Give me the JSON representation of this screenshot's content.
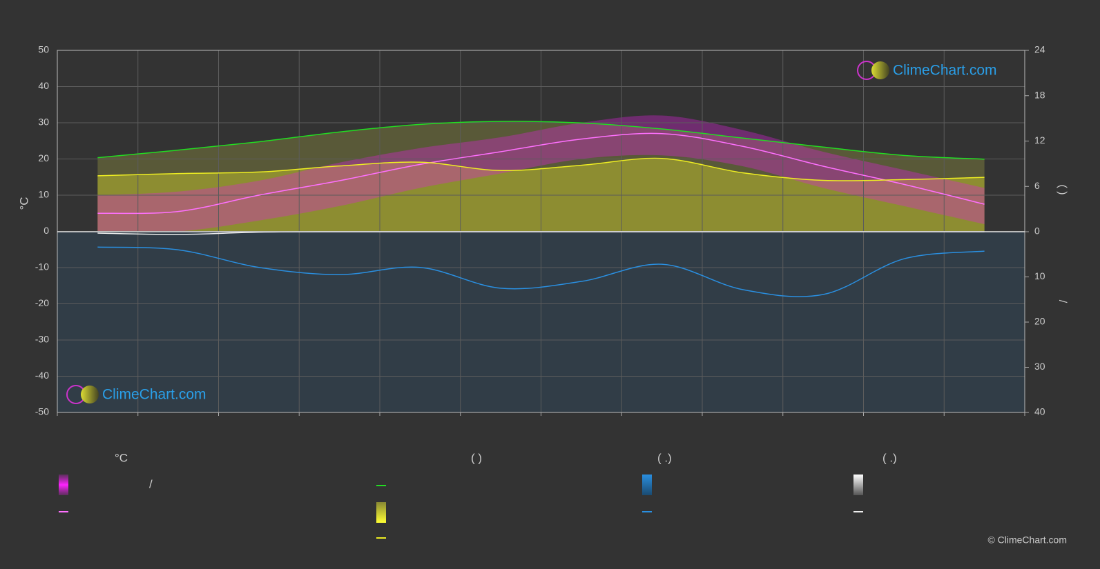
{
  "chart_data": {
    "type": "line",
    "ylabel": "°C",
    "y2label": "(   )",
    "y3label": "/",
    "categories": [
      null,
      null,
      null,
      null,
      null,
      null,
      null,
      null,
      null,
      null,
      null,
      null
    ],
    "ylim": [
      -50,
      50
    ],
    "yticks": [
      -50,
      -40,
      -30,
      -20,
      -10,
      0,
      10,
      20,
      30,
      40,
      50
    ],
    "y2lim": [
      0,
      24
    ],
    "y2ticks": [
      0,
      6,
      12,
      18,
      24
    ],
    "y3lim": [
      0,
      40
    ],
    "y3ticks": [
      0,
      10,
      20,
      30,
      40
    ],
    "grid": true,
    "temp_band": {
      "color": "#e020e0",
      "low": [
        0,
        0,
        3,
        7,
        12,
        16,
        20,
        21,
        18,
        12,
        7,
        2
      ],
      "high": [
        10,
        11,
        14,
        19,
        23,
        26,
        30,
        32,
        28,
        22,
        17,
        12
      ]
    },
    "series": [
      {
        "color": "#ff70ff",
        "axis": "y",
        "values": [
          5,
          5.5,
          10,
          14,
          18.5,
          22,
          25.5,
          27,
          23.5,
          18,
          13,
          7.5
        ]
      },
      {
        "color": "#22dd22",
        "axis": "y2",
        "values": [
          9.8,
          10.8,
          11.9,
          13.2,
          14.2,
          14.6,
          14.4,
          13.6,
          12.4,
          11.2,
          10.1,
          9.6
        ]
      },
      {
        "color": "#eeee22",
        "axis": "y2",
        "values": [
          7.4,
          7.7,
          7.9,
          8.7,
          9.2,
          8.1,
          8.8,
          9.7,
          7.8,
          6.8,
          6.9,
          7.2
        ]
      },
      {
        "color": "#2a8fe0",
        "axis": "y3",
        "values": [
          3.4,
          4,
          7.9,
          9.5,
          7.9,
          12.5,
          11,
          7.2,
          12.8,
          13.9,
          6,
          4.3
        ]
      },
      {
        "color": "#eeeeee",
        "axis": "y3",
        "values": [
          0.3,
          0.6,
          0.1,
          0,
          0,
          0,
          0,
          0,
          0,
          0,
          0,
          0
        ]
      }
    ]
  },
  "legend": {
    "headers": [
      "°C",
      "(          )",
      "(   .)",
      "(   .)"
    ],
    "separator": "/"
  },
  "watermark": "ClimeChart.com",
  "copyright": "© ClimeChart.com"
}
